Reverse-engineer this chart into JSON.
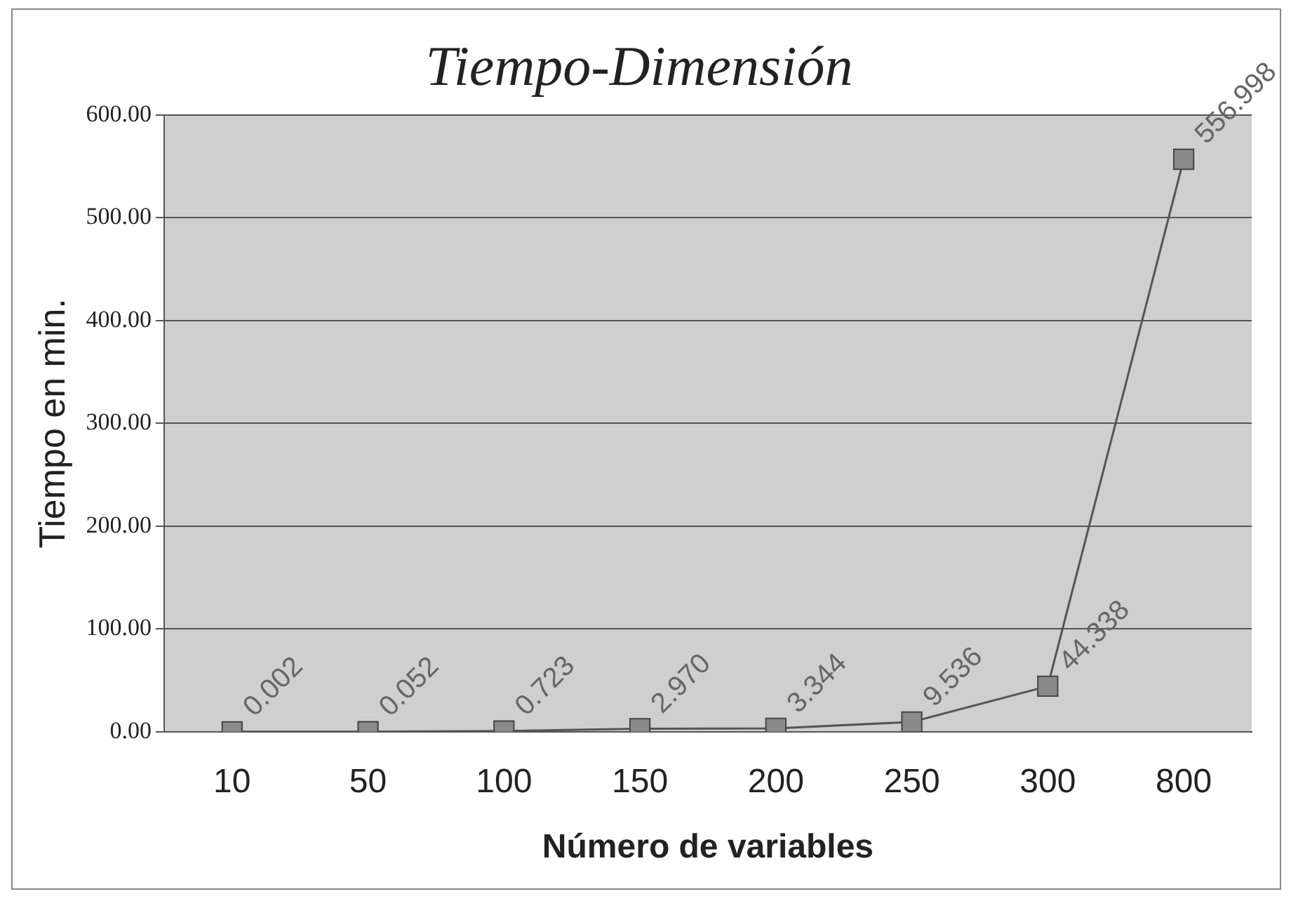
{
  "chart_data": {
    "type": "line",
    "title": "Tiempo-Dimensión",
    "xlabel": "Número de variables",
    "ylabel": "Tiempo en min.",
    "categories": [
      "10",
      "50",
      "100",
      "150",
      "200",
      "250",
      "300",
      "800"
    ],
    "series": [
      {
        "color": "#555555",
        "values": [
          0.002,
          0.052,
          0.723,
          2.97,
          3.344,
          9.536,
          44.338,
          556.998
        ],
        "value_labels": [
          "0.002",
          "0.052",
          "0.723",
          "2.970",
          "3.344",
          "9.536",
          "44.338",
          "556.998"
        ]
      }
    ],
    "ylim": [
      0,
      600
    ],
    "yticks": [
      {
        "value": 0,
        "label": "0.00"
      },
      {
        "value": 100,
        "label": "100.00"
      },
      {
        "value": 200,
        "label": "200.00"
      },
      {
        "value": 300,
        "label": "300.00"
      },
      {
        "value": 400,
        "label": "400.00"
      },
      {
        "value": 500,
        "label": "500.00"
      },
      {
        "value": 600,
        "label": "600.00"
      }
    ],
    "grid": "y",
    "legend": false,
    "marker": "square",
    "line_style": "solid"
  }
}
